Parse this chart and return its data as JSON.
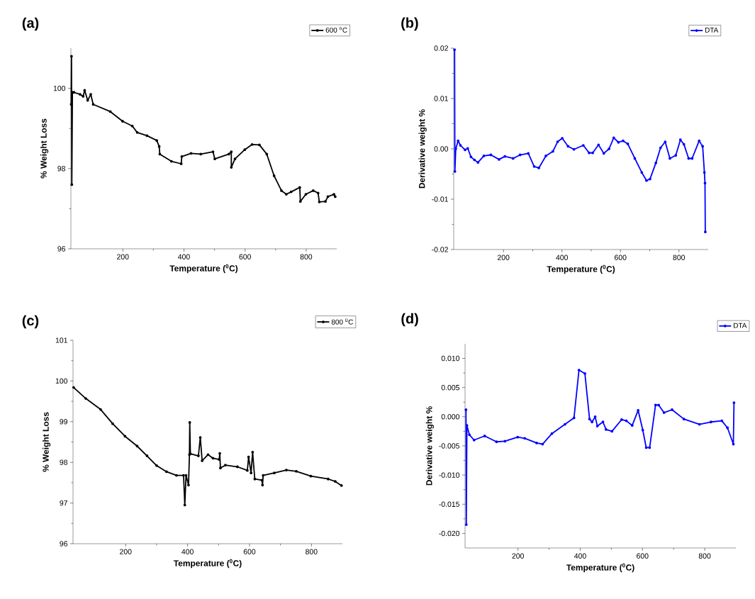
{
  "chart_data": [
    {
      "type": "line",
      "title": "(a)",
      "xlabel": "Temperature ($^{0}$C)",
      "ylabel": "% Weight Loss",
      "legend": "top right",
      "marker": "circle",
      "xlim": [
        30,
        900
      ],
      "ylim": [
        96,
        101
      ],
      "xticks": [
        200,
        400,
        600,
        800
      ],
      "yticks": [
        96,
        98,
        100
      ],
      "x": [
        31,
        32,
        33,
        35,
        40,
        60,
        70,
        75,
        85,
        95,
        103,
        159,
        199,
        231,
        247,
        279,
        311,
        319,
        321,
        359,
        391,
        393,
        423,
        455,
        495,
        501,
        547,
        555,
        555,
        567,
        599,
        623,
        647,
        671,
        695,
        719,
        735,
        751,
        779,
        781,
        799,
        823,
        839,
        843,
        863,
        871,
        891,
        895
      ],
      "series": [
        {
          "name": "600 $^{o}$C",
          "color": "#000000",
          "values": [
            99.6,
            100.8,
            97.6,
            99.9,
            99.9,
            99.85,
            99.8,
            99.95,
            99.7,
            99.85,
            99.6,
            99.42,
            99.18,
            99.06,
            98.9,
            98.82,
            98.7,
            98.55,
            98.36,
            98.18,
            98.12,
            98.3,
            98.38,
            98.36,
            98.42,
            98.24,
            98.36,
            98.42,
            98.03,
            98.24,
            98.47,
            98.6,
            98.59,
            98.36,
            97.82,
            97.45,
            97.36,
            97.42,
            97.53,
            97.18,
            97.36,
            97.45,
            97.39,
            97.17,
            97.18,
            97.3,
            97.36,
            97.3
          ]
        }
      ]
    },
    {
      "type": "line",
      "title": "(b)",
      "xlabel": "Temperature ($^{0}$C)",
      "ylabel": "Derivative weight %",
      "legend": "top right",
      "marker": "circle",
      "xlim": [
        30,
        900
      ],
      "ylim": [
        -0.02,
        0.02
      ],
      "xticks": [
        200,
        400,
        600,
        800
      ],
      "yticks": [
        {
          "value": -0.02,
          "label": "-0.02"
        },
        {
          "value": -0.01,
          "label": "-0.01"
        },
        {
          "value": 0,
          "label": "0.00"
        },
        {
          "value": 0.01,
          "label": "0.01"
        },
        {
          "value": 0.02,
          "label": "0.02"
        }
      ],
      "x": [
        33,
        34,
        37,
        45,
        53,
        69,
        78,
        89,
        101,
        113,
        133,
        157,
        185,
        205,
        233,
        257,
        285,
        305,
        321,
        345,
        369,
        385,
        401,
        421,
        441,
        473,
        493,
        505,
        525,
        543,
        561,
        577,
        593,
        609,
        625,
        649,
        673,
        689,
        701,
        721,
        737,
        753,
        769,
        789,
        805,
        817,
        833,
        845,
        869,
        881,
        887,
        889,
        890
      ],
      "series": [
        {
          "name": "DTA",
          "color": "#0000ff",
          "values": [
            0.0197,
            -0.0045,
            0,
            0.0016,
            0.0007,
            -0.0002,
            0.0001,
            -0.0016,
            -0.0022,
            -0.0027,
            -0.0014,
            -0.0012,
            -0.0021,
            -0.0015,
            -0.0019,
            -0.0012,
            -0.0009,
            -0.0035,
            -0.0038,
            -0.0014,
            -0.0005,
            0.0014,
            0.0021,
            0.0005,
            -0.0001,
            0.0007,
            -0.0008,
            -0.0008,
            0.0008,
            -0.0009,
            0,
            0.0022,
            0.0013,
            0.0016,
            0.001,
            -0.0019,
            -0.0047,
            -0.0063,
            -0.006,
            -0.0028,
            0.0002,
            0.0014,
            -0.0019,
            -0.0013,
            0.0018,
            0.0009,
            -0.0019,
            -0.0019,
            0.0016,
            0.0005,
            -0.0047,
            -0.0068,
            -0.0165
          ]
        }
      ]
    },
    {
      "type": "line",
      "title": "(c)",
      "xlabel": "Temperature ($^{0}$C)",
      "ylabel": "% Weight Loss",
      "legend": "top right",
      "marker": "circle",
      "xlim": [
        30,
        900
      ],
      "ylim": [
        96,
        101
      ],
      "xticks": [
        200,
        400,
        600,
        800
      ],
      "yticks": [
        96,
        97,
        98,
        99,
        100,
        101
      ],
      "x": [
        32,
        71,
        119,
        158,
        198,
        237,
        269,
        300,
        332,
        364,
        387,
        391,
        395,
        403,
        406,
        407,
        409,
        435,
        441,
        447,
        466,
        482,
        502,
        504,
        506,
        522,
        561,
        593,
        597,
        605,
        610,
        617,
        640,
        642,
        644,
        680,
        719,
        751,
        798,
        854,
        877,
        897
      ],
      "series": [
        {
          "name": "800 $^{0}$C",
          "color": "#000000",
          "values": [
            99.84,
            99.57,
            99.3,
            98.95,
            98.64,
            98.4,
            98.16,
            97.92,
            97.77,
            97.68,
            97.68,
            96.95,
            97.68,
            97.44,
            98.19,
            98.98,
            98.21,
            98.16,
            98.61,
            98.04,
            98.19,
            98.1,
            98.07,
            98.22,
            97.86,
            97.93,
            97.89,
            97.8,
            98.13,
            97.74,
            98.25,
            97.59,
            97.56,
            97.44,
            97.68,
            97.74,
            97.81,
            97.78,
            97.66,
            97.59,
            97.53,
            97.43
          ]
        }
      ]
    },
    {
      "type": "line",
      "title": "(d)",
      "xlabel": "Temperature ($^{0}$C)",
      "ylabel": "Derivative weight %",
      "legend": "top right",
      "marker": "circle",
      "xlim": [
        30,
        900
      ],
      "ylim": [
        -0.0225,
        0.0125
      ],
      "xticks": [
        200,
        400,
        600,
        800
      ],
      "yticks": [
        {
          "value": -0.02,
          "label": "-0.020"
        },
        {
          "value": -0.015,
          "label": "-0.015"
        },
        {
          "value": -0.01,
          "label": "-0.010"
        },
        {
          "value": -0.005,
          "label": "-0.005"
        },
        {
          "value": 0,
          "label": "0.000"
        },
        {
          "value": 0.005,
          "label": "0.005"
        },
        {
          "value": 0.01,
          "label": "0.010"
        }
      ],
      "x": [
        33,
        34,
        36,
        44,
        59,
        93,
        131,
        158,
        199,
        222,
        260,
        279,
        309,
        351,
        380,
        396,
        415,
        430,
        438,
        448,
        455,
        473,
        483,
        502,
        533,
        548,
        567,
        586,
        601,
        612,
        623,
        642,
        652,
        669,
        695,
        733,
        783,
        820,
        855,
        873,
        892,
        894
      ],
      "series": [
        {
          "name": "DTA",
          "color": "#0000ff",
          "values": [
            0.0012,
            -0.0185,
            -0.0015,
            -0.0031,
            -0.004,
            -0.0033,
            -0.0043,
            -0.0042,
            -0.0035,
            -0.0037,
            -0.0045,
            -0.0047,
            -0.0029,
            -0.0013,
            -0.0002,
            0.008,
            0.0074,
            -0.0004,
            -0.0009,
            0,
            -0.0016,
            -0.0009,
            -0.0022,
            -0.0025,
            -0.0005,
            -0.0007,
            -0.0015,
            0.0011,
            -0.0023,
            -0.0053,
            -0.0053,
            0.002,
            0.002,
            0.0007,
            0.0012,
            -0.0004,
            -0.0013,
            -0.0009,
            -0.0007,
            -0.0019,
            -0.0047,
            0.0024
          ]
        }
      ]
    }
  ]
}
